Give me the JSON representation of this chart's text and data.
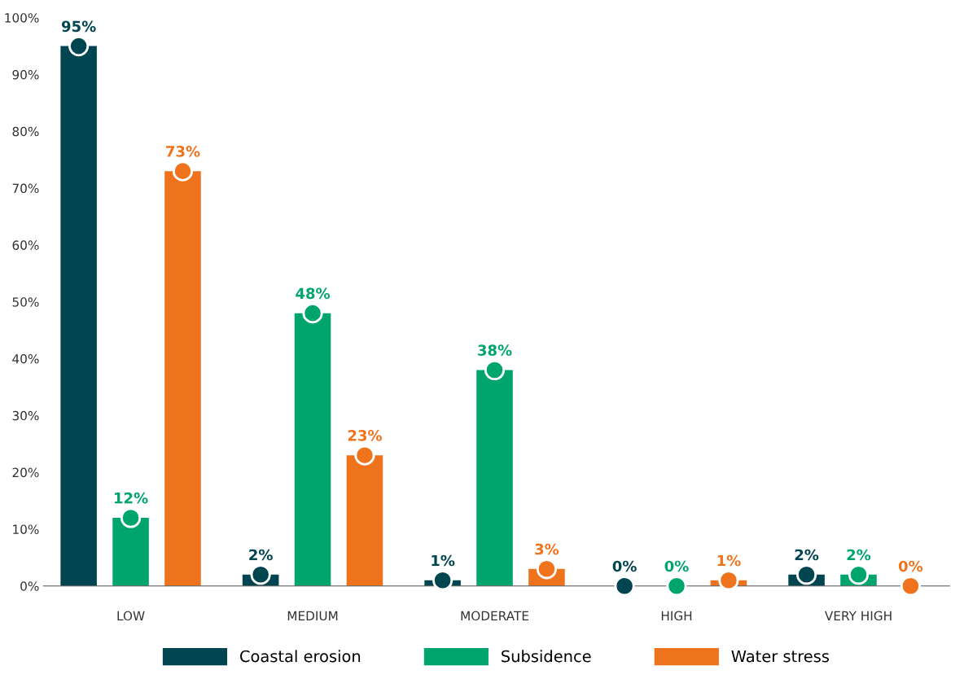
{
  "chart_data": {
    "type": "lollipop",
    "categories": [
      "LOW",
      "MEDIUM",
      "MODERATE",
      "HIGH",
      "VERY HIGH"
    ],
    "series": [
      {
        "name": "Coastal erosion",
        "color": "#00454f",
        "values": [
          95,
          2,
          1,
          0,
          2
        ],
        "value_labels": [
          "95%",
          "2%",
          "1%",
          "0%",
          "2%"
        ]
      },
      {
        "name": "Subsidence",
        "color": "#00a56e",
        "values": [
          12,
          48,
          38,
          0,
          2
        ],
        "value_labels": [
          "12%",
          "48%",
          "38%",
          "0%",
          "2%"
        ]
      },
      {
        "name": "Water stress",
        "color": "#ee731c",
        "values": [
          73,
          23,
          3,
          1,
          0
        ],
        "value_labels": [
          "73%",
          "23%",
          "3%",
          "1%",
          "0%"
        ]
      }
    ],
    "ylim": [
      0,
      100
    ],
    "yticks": [
      {
        "value": 0,
        "label": "0%"
      },
      {
        "value": 10,
        "label": "10%"
      },
      {
        "value": 20,
        "label": "20%"
      },
      {
        "value": 30,
        "label": "30%"
      },
      {
        "value": 40,
        "label": "40%"
      },
      {
        "value": 50,
        "label": "50%"
      },
      {
        "value": 60,
        "label": "60%"
      },
      {
        "value": 70,
        "label": "70%"
      },
      {
        "value": 80,
        "label": "80%"
      },
      {
        "value": 90,
        "label": "90%"
      },
      {
        "value": 100,
        "label": "100%"
      }
    ],
    "data_labels": true,
    "marker": "circle",
    "legend": "bottom",
    "grid": false
  }
}
